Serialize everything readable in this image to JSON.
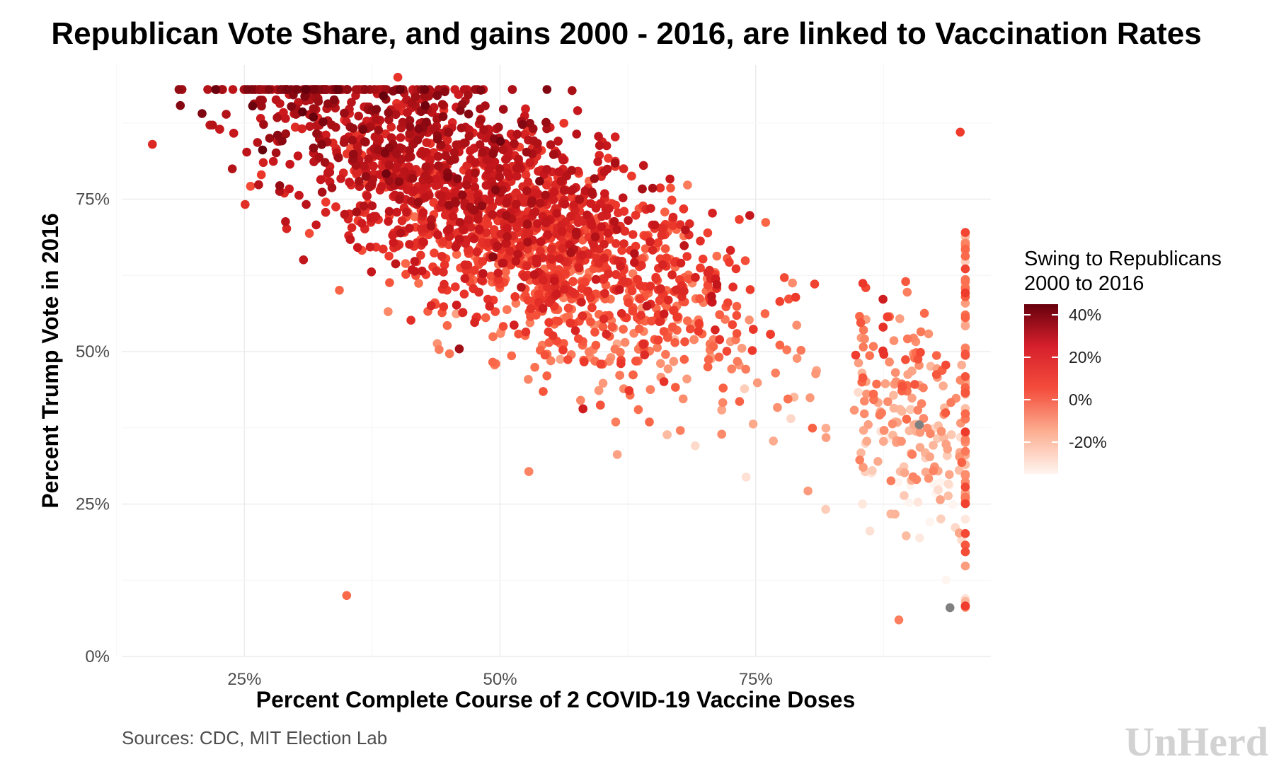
{
  "chart_data": {
    "type": "scatter",
    "title": "Republican Vote Share, and gains 2000 - 2016, are linked to Vaccination Rates",
    "xlabel": "Percent Complete Course of 2 COVID-19 Vaccine Doses",
    "ylabel": "Percent Trump Vote in 2016",
    "x_range": [
      0.13,
      0.98
    ],
    "y_range": [
      0.0,
      0.97
    ],
    "x_ticks": [
      0.25,
      0.5,
      0.75
    ],
    "x_tick_labels": [
      "25%",
      "50%",
      "75%"
    ],
    "y_ticks": [
      0,
      0.25,
      0.5,
      0.75
    ],
    "y_tick_labels": [
      "0%",
      "25%",
      "50%",
      "75%"
    ],
    "grid": true,
    "legend": {
      "title_line1": "Swing to Republicans",
      "title_line2": "2000 to 2016",
      "position": "right",
      "color_range": [
        -0.35,
        0.45
      ],
      "ticks": [
        0.4,
        0.2,
        0.0,
        -0.2
      ],
      "tick_labels": [
        "40%",
        "20%",
        "0%",
        "-20%"
      ]
    },
    "highlighted_points": [
      {
        "x": 0.95,
        "y": 0.86,
        "swing": 0.05
      },
      {
        "x": 0.4,
        "y": 0.95,
        "swing": 0.08
      },
      {
        "x": 0.89,
        "y": 0.06,
        "swing": -0.1
      },
      {
        "x": 0.35,
        "y": 0.1,
        "swing": -0.05
      },
      {
        "x": 0.16,
        "y": 0.84,
        "swing": 0.12
      }
    ],
    "missing_points": [
      {
        "x": 0.91,
        "y": 0.38
      },
      {
        "x": 0.94,
        "y": 0.08
      }
    ],
    "colors": {
      "high": "#67000d",
      "mid_high": "#d7202c",
      "mid": "#f44d3c",
      "low": "#fcae91",
      "lowest": "#fff5f0",
      "missing": "#808080"
    }
  },
  "caption": "Sources: CDC, MIT Election Lab",
  "brand": "UnHerd"
}
